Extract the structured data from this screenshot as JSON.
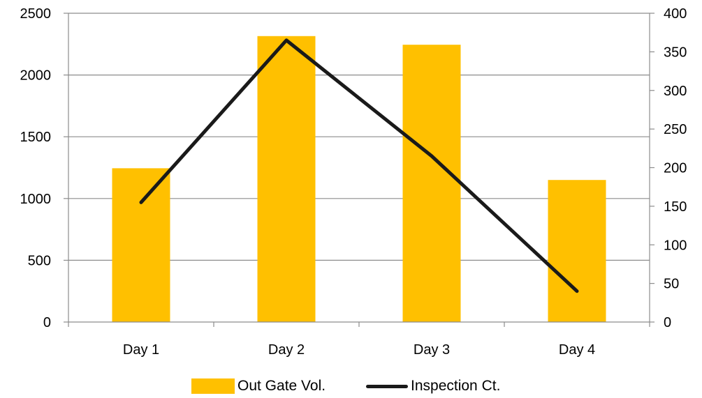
{
  "chart_data": {
    "type": "bar",
    "categories": [
      "Day 1",
      "Day 2",
      "Day 3",
      "Day 4"
    ],
    "series": [
      {
        "name": "Out Gate Vol.",
        "kind": "bar",
        "axis": "left",
        "color": "#FFC000",
        "values": [
          1245,
          2315,
          2245,
          1150
        ]
      },
      {
        "name": "Inspection Ct.",
        "kind": "line",
        "axis": "right",
        "color": "#1a1a1a",
        "values": [
          155,
          365,
          215,
          40
        ]
      }
    ],
    "y_left": {
      "min": 0,
      "max": 2500,
      "step": 500,
      "ticks": [
        "0",
        "500",
        "1000",
        "1500",
        "2000",
        "2500"
      ]
    },
    "y_right": {
      "min": 0,
      "max": 400,
      "step": 50,
      "ticks": [
        "0",
        "50",
        "100",
        "150",
        "200",
        "250",
        "300",
        "350",
        "400"
      ]
    },
    "title": "",
    "xlabel": "",
    "ylabel": "",
    "grid": true,
    "legend_position": "bottom"
  }
}
